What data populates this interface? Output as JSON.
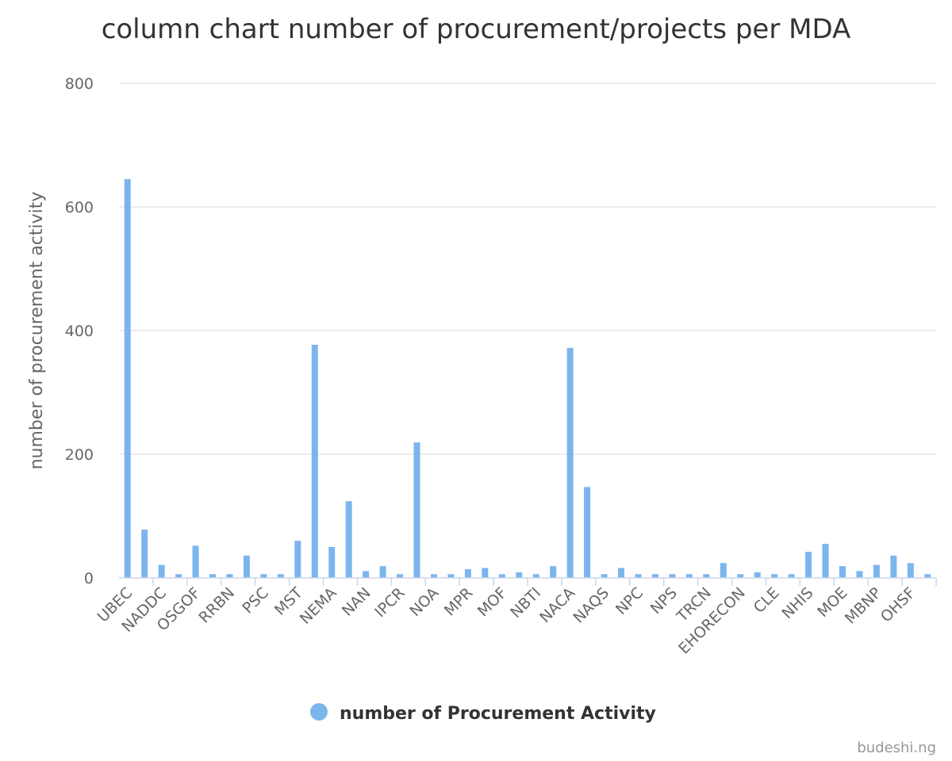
{
  "chart_data": {
    "type": "bar",
    "title": "column chart number of procurement/projects per MDA",
    "ylabel": "number of procurement activity",
    "xlabel": "",
    "ylim": [
      0,
      800
    ],
    "yticks": [
      0,
      200,
      400,
      600,
      800
    ],
    "grid": true,
    "legend_position": "bottom",
    "categories": [
      "UBEC",
      "",
      "NADDC",
      "",
      "OSGOF",
      "",
      "RRBN",
      "",
      "PSC",
      "",
      "MST",
      "",
      "NEMA",
      "",
      "NAN",
      "",
      "IPCR",
      "",
      "NOA",
      "",
      "MPR",
      "",
      "MOF",
      "",
      "NBTI",
      "",
      "NACA",
      "",
      "NAQS",
      "",
      "NPC",
      "",
      "NPS",
      "",
      "TRCN",
      "",
      "EHORECON",
      "",
      "CLE",
      "",
      "NHIS",
      "",
      "MOE",
      "",
      "MBNP",
      "",
      "OHSF",
      ""
    ],
    "series": [
      {
        "name": "number of Procurement Activity",
        "color": "#7cb5ec",
        "values": [
          645,
          78,
          21,
          6,
          52,
          6,
          6,
          36,
          6,
          6,
          60,
          377,
          50,
          124,
          11,
          19,
          6,
          219,
          6,
          6,
          14,
          16,
          6,
          9,
          6,
          19,
          372,
          147,
          6,
          16,
          6,
          6,
          6,
          6,
          6,
          24,
          6,
          9,
          6,
          6,
          42,
          55,
          19,
          11,
          21,
          36,
          24,
          6
        ]
      }
    ]
  },
  "credit": "budeshi.ng"
}
